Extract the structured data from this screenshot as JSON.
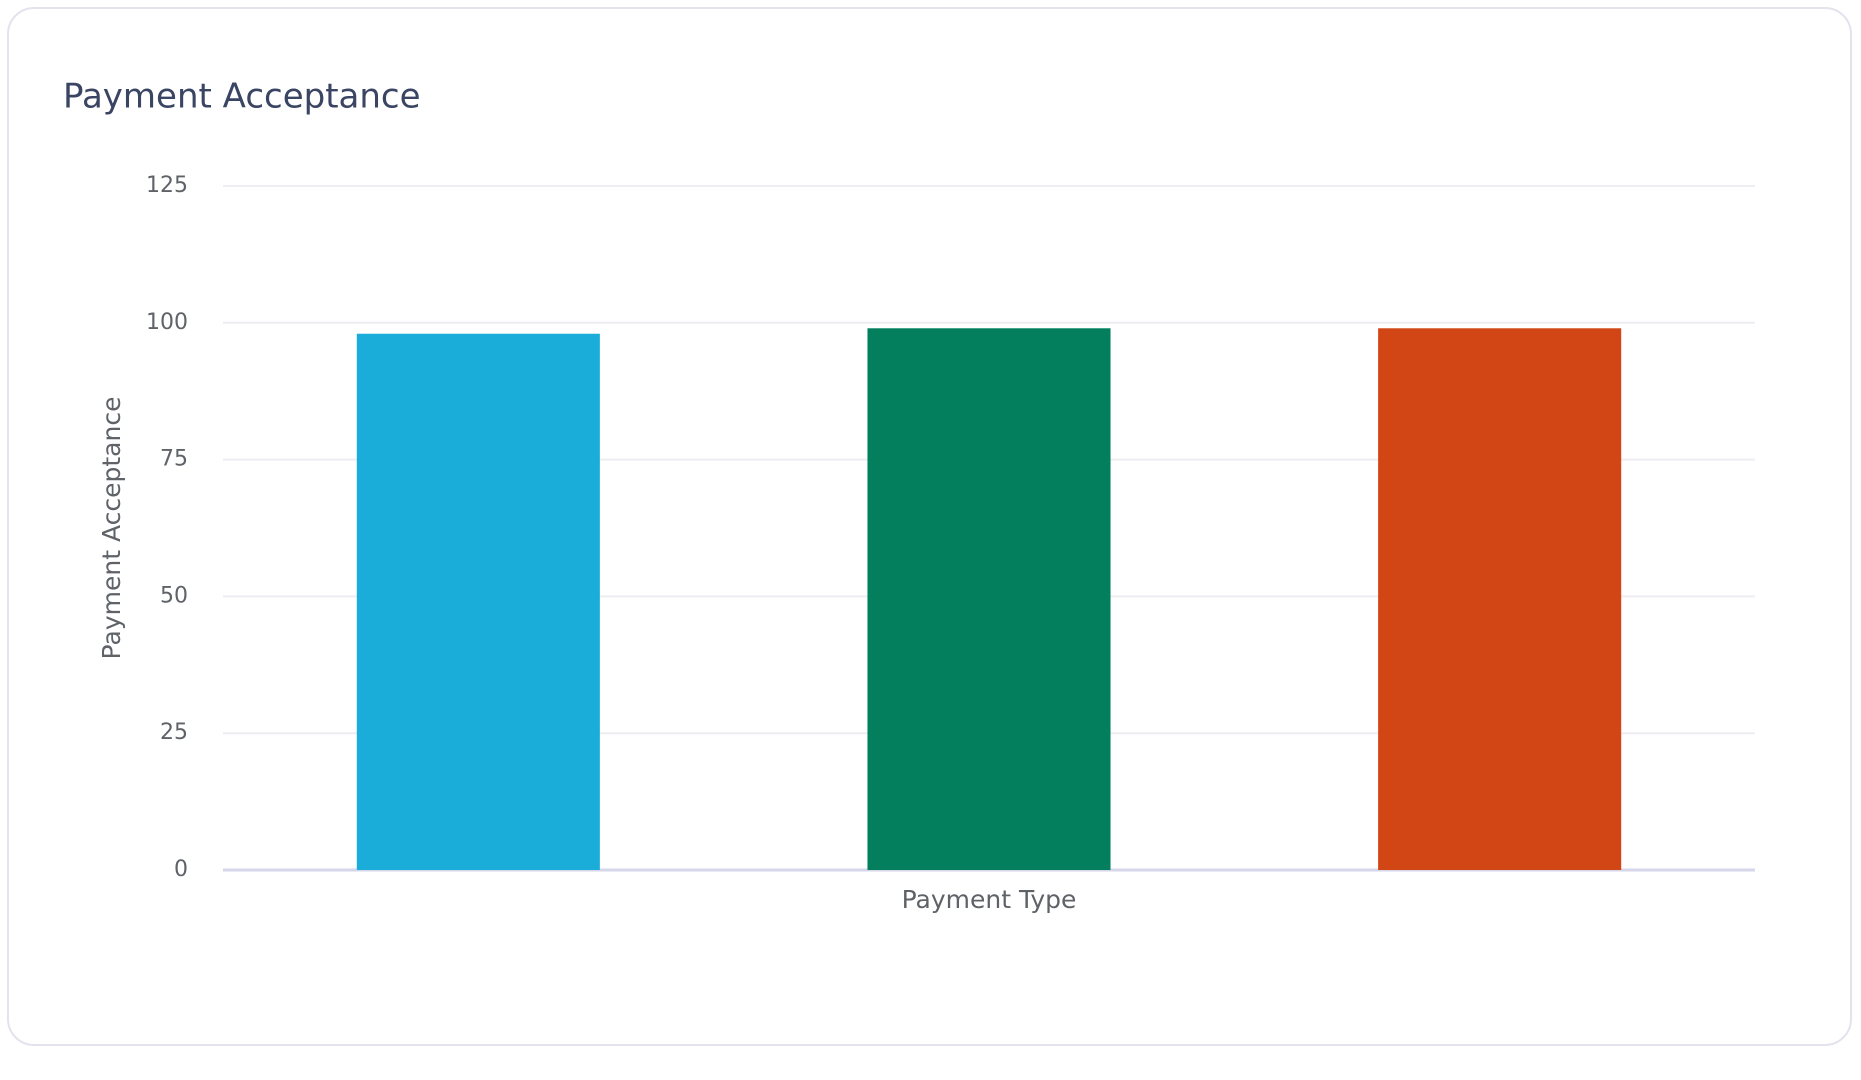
{
  "chart_data": {
    "type": "bar",
    "title": "Payment Acceptance",
    "x_label": "Payment Type",
    "y_label": "Payment Acceptance",
    "categories": [
      null,
      null,
      null
    ],
    "values": [
      98,
      99,
      99
    ],
    "colors": [
      "#1aadd9",
      "#037f5e",
      "#d24514"
    ],
    "ylim": [
      0,
      125
    ],
    "yticks": [
      0,
      25,
      50,
      75,
      100,
      125
    ],
    "grid": true
  }
}
